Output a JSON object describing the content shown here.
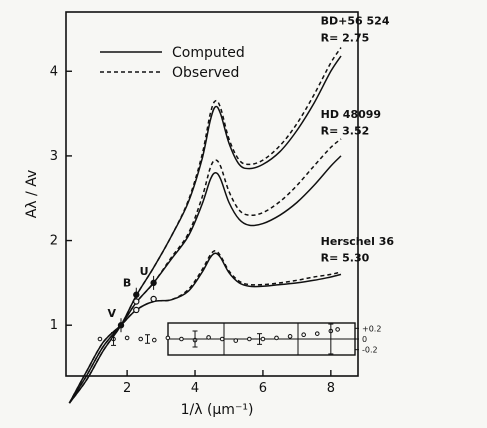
{
  "chart_data": {
    "type": "line",
    "xlabel": "1/λ (μm⁻¹)",
    "ylabel": "Aλ / Av",
    "xlim": [
      0.2,
      8.8
    ],
    "ylim": [
      0.4,
      4.7
    ],
    "x_ticks": [
      "2",
      "4",
      "6",
      "8"
    ],
    "y_ticks": [
      "1",
      "2",
      "3",
      "4"
    ],
    "legend": {
      "placement": "top-left",
      "entries": [
        {
          "label": "Computed",
          "style": "solid"
        },
        {
          "label": "Observed",
          "style": "dashed"
        }
      ]
    },
    "annotations": [
      {
        "text": "BD+56 524",
        "x": 7.7,
        "y": 4.55
      },
      {
        "text": "R= 2.75",
        "x": 7.7,
        "y": 4.35
      },
      {
        "text": "HD 48099",
        "x": 7.7,
        "y": 3.45
      },
      {
        "text": "R= 3.52",
        "x": 7.7,
        "y": 3.25
      },
      {
        "text": "Herschel 36",
        "x": 7.7,
        "y": 1.95
      },
      {
        "text": "R= 5.30",
        "x": 7.7,
        "y": 1.75
      }
    ],
    "photometric_points": [
      {
        "label": "V",
        "x": 1.82,
        "y": 1.0,
        "filled": true
      },
      {
        "label": "B",
        "x": 2.27,
        "y": 1.36,
        "filled": true
      },
      {
        "label": "U",
        "x": 2.78,
        "y": 1.5,
        "filled": true
      },
      {
        "label": "",
        "x": 2.27,
        "y": 1.28,
        "filled": false
      },
      {
        "label": "",
        "x": 2.78,
        "y": 1.31,
        "filled": false
      },
      {
        "label": "",
        "x": 2.27,
        "y": 1.18,
        "filled": false
      }
    ],
    "series": [
      {
        "star": "BD+56 524",
        "style": "solid",
        "x": [
          0.3,
          0.8,
          1.3,
          1.82,
          2.27,
          2.78,
          3.3,
          3.8,
          4.2,
          4.45,
          4.6,
          4.75,
          5.0,
          5.3,
          5.6,
          6.0,
          6.5,
          7.0,
          7.5,
          8.0,
          8.3
        ],
        "y": [
          0.08,
          0.35,
          0.7,
          1.0,
          1.35,
          1.68,
          2.05,
          2.45,
          2.95,
          3.42,
          3.58,
          3.5,
          3.15,
          2.9,
          2.85,
          2.9,
          3.05,
          3.3,
          3.62,
          4.0,
          4.18
        ]
      },
      {
        "star": "BD+56 524",
        "style": "dashed",
        "x": [
          0.3,
          0.8,
          1.3,
          1.82,
          2.27,
          2.78,
          3.3,
          3.8,
          4.2,
          4.45,
          4.6,
          4.75,
          5.0,
          5.3,
          5.6,
          6.0,
          6.5,
          7.0,
          7.5,
          8.0,
          8.3
        ],
        "y": [
          0.08,
          0.35,
          0.7,
          1.0,
          1.35,
          1.68,
          2.05,
          2.47,
          3.0,
          3.5,
          3.65,
          3.57,
          3.2,
          2.95,
          2.9,
          2.95,
          3.12,
          3.38,
          3.72,
          4.1,
          4.28
        ]
      },
      {
        "star": "HD 48099",
        "style": "solid",
        "x": [
          0.3,
          0.8,
          1.3,
          1.82,
          2.27,
          2.78,
          3.3,
          3.8,
          4.2,
          4.45,
          4.6,
          4.75,
          5.0,
          5.3,
          5.6,
          6.0,
          6.5,
          7.0,
          7.5,
          8.0,
          8.3
        ],
        "y": [
          0.08,
          0.4,
          0.75,
          1.0,
          1.27,
          1.5,
          1.78,
          2.05,
          2.42,
          2.72,
          2.8,
          2.73,
          2.45,
          2.25,
          2.18,
          2.2,
          2.3,
          2.45,
          2.65,
          2.88,
          3.0
        ]
      },
      {
        "star": "HD 48099",
        "style": "dashed",
        "x": [
          0.3,
          0.8,
          1.3,
          1.82,
          2.27,
          2.78,
          3.3,
          3.8,
          4.2,
          4.45,
          4.6,
          4.75,
          5.0,
          5.3,
          5.6,
          6.0,
          6.5,
          7.0,
          7.5,
          8.0,
          8.3
        ],
        "y": [
          0.08,
          0.4,
          0.75,
          1.0,
          1.27,
          1.5,
          1.8,
          2.08,
          2.5,
          2.86,
          2.95,
          2.88,
          2.58,
          2.36,
          2.3,
          2.33,
          2.46,
          2.65,
          2.88,
          3.1,
          3.2
        ]
      },
      {
        "star": "Herschel 36",
        "style": "solid",
        "x": [
          0.3,
          0.8,
          1.3,
          1.82,
          2.27,
          2.78,
          3.3,
          3.8,
          4.2,
          4.45,
          4.6,
          4.75,
          5.0,
          5.3,
          5.6,
          6.0,
          6.5,
          7.0,
          7.5,
          8.0,
          8.3
        ],
        "y": [
          0.08,
          0.45,
          0.8,
          1.0,
          1.18,
          1.28,
          1.3,
          1.4,
          1.62,
          1.8,
          1.85,
          1.8,
          1.62,
          1.5,
          1.46,
          1.46,
          1.48,
          1.5,
          1.53,
          1.57,
          1.6
        ]
      },
      {
        "star": "Herschel 36",
        "style": "dashed",
        "x": [
          0.3,
          0.8,
          1.3,
          1.82,
          2.27,
          2.78,
          3.3,
          3.8,
          4.2,
          4.45,
          4.6,
          4.75,
          5.0,
          5.3,
          5.6,
          6.0,
          6.5,
          7.0,
          7.5,
          8.0,
          8.3
        ],
        "y": [
          0.08,
          0.45,
          0.8,
          1.0,
          1.18,
          1.28,
          1.3,
          1.42,
          1.65,
          1.83,
          1.88,
          1.82,
          1.64,
          1.52,
          1.48,
          1.48,
          1.5,
          1.53,
          1.57,
          1.6,
          1.63
        ]
      }
    ],
    "inset": {
      "ylim": [
        -0.3,
        0.3
      ],
      "y_ticks": [
        "+0.2",
        "0",
        "-0.2"
      ],
      "x": [
        1.2,
        1.6,
        2.0,
        2.4,
        2.8,
        3.2,
        3.6,
        4.0,
        4.4,
        4.8,
        5.2,
        5.6,
        6.0,
        6.4,
        6.8,
        7.2,
        7.6,
        8.0,
        8.2
      ],
      "y": [
        0.0,
        0.0,
        0.02,
        0.0,
        -0.02,
        0.02,
        0.0,
        -0.02,
        0.03,
        0.0,
        -0.03,
        0.0,
        0.0,
        0.02,
        0.05,
        0.08,
        0.1,
        0.15,
        0.18
      ],
      "error_bar_x": [
        1.6,
        2.6,
        4.0,
        5.9,
        8.0
      ],
      "error_bar_half": [
        0.12,
        0.08,
        0.15,
        0.1,
        0.28
      ]
    }
  }
}
